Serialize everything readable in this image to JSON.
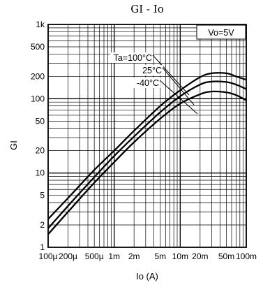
{
  "chart_data": {
    "type": "line",
    "title": "GI - Io",
    "xlabel": "Io (A)",
    "ylabel": "GI",
    "x_scale": "log",
    "y_scale": "log",
    "xlim": [
      0.0001,
      0.1
    ],
    "ylim": [
      1,
      1000
    ],
    "grid": true,
    "x_ticks": [
      {
        "value": 0.0001,
        "label": "100µ"
      },
      {
        "value": 0.0002,
        "label": "200µ"
      },
      {
        "value": 0.0005,
        "label": "500µ"
      },
      {
        "value": 0.001,
        "label": "1m"
      },
      {
        "value": 0.002,
        "label": "2m"
      },
      {
        "value": 0.005,
        "label": "5m"
      },
      {
        "value": 0.01,
        "label": "10m"
      },
      {
        "value": 0.02,
        "label": "20m"
      },
      {
        "value": 0.05,
        "label": "50m"
      },
      {
        "value": 0.1,
        "label": "100m"
      }
    ],
    "y_ticks": [
      {
        "value": 1,
        "label": "1"
      },
      {
        "value": 2,
        "label": "2"
      },
      {
        "value": 5,
        "label": "5"
      },
      {
        "value": 10,
        "label": "10"
      },
      {
        "value": 20,
        "label": "20"
      },
      {
        "value": 50,
        "label": "50"
      },
      {
        "value": 100,
        "label": "100"
      },
      {
        "value": 200,
        "label": "200"
      },
      {
        "value": 500,
        "label": "500"
      },
      {
        "value": 1000,
        "label": "1k"
      }
    ],
    "condition_label": "Vo=5V",
    "series": [
      {
        "name": "Ta=100°C",
        "x": [
          0.0001,
          0.0002,
          0.0005,
          0.001,
          0.002,
          0.005,
          0.01,
          0.02,
          0.03,
          0.05,
          0.07,
          0.1
        ],
        "y": [
          2.4,
          4.6,
          11,
          20,
          37,
          80,
          130,
          195,
          220,
          220,
          200,
          180
        ]
      },
      {
        "name": "25°C",
        "x": [
          0.0001,
          0.0002,
          0.0005,
          0.001,
          0.002,
          0.005,
          0.01,
          0.02,
          0.03,
          0.05,
          0.07,
          0.1
        ],
        "y": [
          1.8,
          3.6,
          8.8,
          17,
          31,
          66,
          108,
          155,
          170,
          168,
          155,
          135
        ]
      },
      {
        "name": "-40°C",
        "x": [
          0.0001,
          0.0002,
          0.0005,
          0.001,
          0.002,
          0.005,
          0.01,
          0.02,
          0.03,
          0.05,
          0.07,
          0.1
        ],
        "y": [
          1.5,
          3.0,
          7.4,
          14,
          26,
          54,
          86,
          115,
          125,
          122,
          112,
          95
        ]
      }
    ]
  }
}
